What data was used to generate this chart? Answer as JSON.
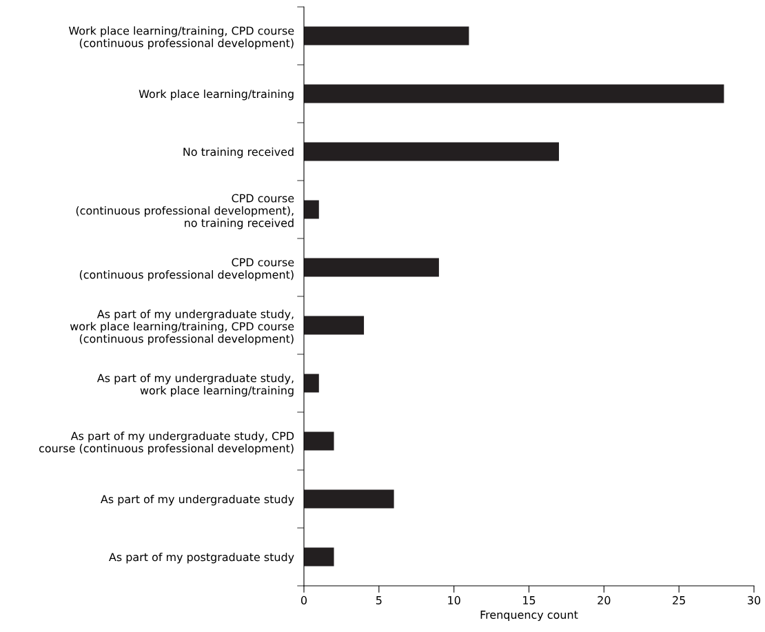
{
  "chart_data": {
    "type": "bar",
    "orientation": "horizontal",
    "xlabel": "Frenquency count",
    "categories": [
      "Work place learning/training, CPD course\n(continuous professional development)",
      "Work place learning/training",
      "No training received",
      "CPD course\n(continuous professional development),\nno training received",
      "CPD course\n(continuous professional development)",
      "As part of my undergraduate study,\nwork place learning/training, CPD course\n(continuous professional development)",
      "As part of my undergraduate study,\nwork place learning/training",
      "As part of my undergraduate study, CPD\ncourse (continuous professional development)",
      "As part of my undergraduate study",
      "As part of my postgraduate study"
    ],
    "values": [
      11,
      28,
      17,
      1,
      9,
      4,
      1,
      2,
      6,
      2
    ],
    "color": "#231f20",
    "xlim": [
      0,
      30
    ],
    "xticks": [
      0,
      5,
      10,
      15,
      20,
      25,
      30
    ]
  }
}
